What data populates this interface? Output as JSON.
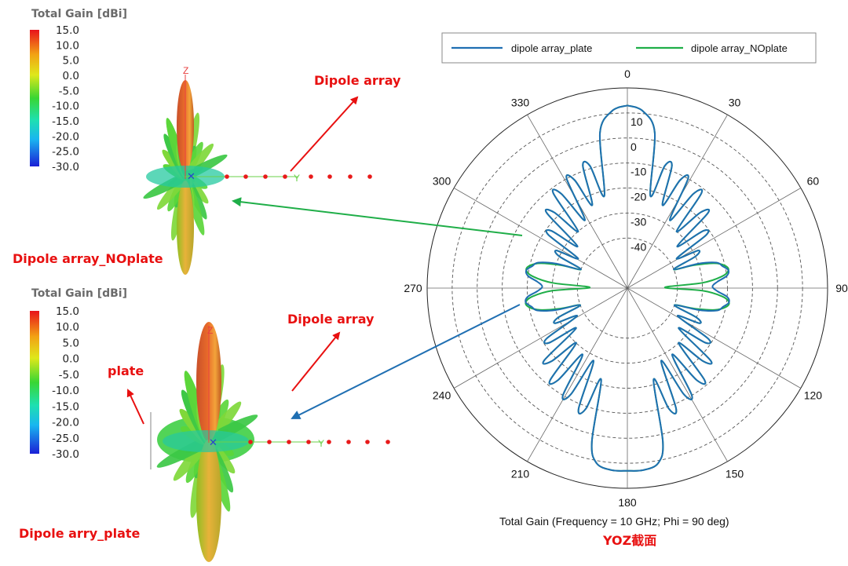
{
  "colorbar": {
    "title": "Total Gain [dBi]",
    "ticks": [
      "15.0",
      "10.0",
      "5.0",
      "0.0",
      "-5.0",
      "-10.0",
      "-15.0",
      "-20.0",
      "-25.0",
      "-30.0"
    ]
  },
  "pattern_top": {
    "axis_z": "Z",
    "axis_y": "Y",
    "arrow_label": "Dipole array",
    "name_label": "Dipole array_NOplate"
  },
  "pattern_bottom": {
    "axis_z": "Z",
    "axis_y": "Y",
    "arrow_label": "Dipole array",
    "plate_label": "plate",
    "name_label": "Dipole arry_plate"
  },
  "colors": {
    "plate": "#1f6fb2",
    "noplate": "#1fae48",
    "label_red": "#e81010",
    "arrow_green": "#1fae48",
    "arrow_blue": "#1f6fb2"
  },
  "chart_data": {
    "type": "polar-line",
    "caption": "Total Gain (Frequency = 10 GHz; Phi = 90 deg)",
    "subcaption": "YOZ截面",
    "radial_range": [
      -60,
      20
    ],
    "radial_ticks": [
      "10",
      "0",
      "-10",
      "-20",
      "-30",
      "-40"
    ],
    "radial_tick_values": [
      10,
      0,
      -10,
      -20,
      -30,
      -40
    ],
    "angle_ticks": [
      "0",
      "30",
      "60",
      "90",
      "120",
      "150",
      "180",
      "210",
      "240",
      "270",
      "300",
      "330"
    ],
    "grid": true,
    "legend_position": "top",
    "series": [
      {
        "name": "dipole array_plate",
        "color": "#1f6fb2",
        "theta_deg": [
          0,
          5,
          10,
          14,
          17,
          20,
          23,
          26,
          29,
          32,
          35,
          38,
          41,
          44,
          47,
          50,
          53,
          56,
          59,
          62,
          65,
          68,
          71,
          74,
          77,
          80,
          83,
          86,
          89,
          92,
          95,
          98,
          101,
          104,
          107,
          110,
          113,
          116,
          119,
          122,
          125,
          128,
          131,
          134,
          137,
          140,
          143,
          146,
          149,
          152,
          155,
          158,
          161,
          164,
          167,
          170,
          175,
          180
        ],
        "gain_dbi": [
          13,
          11,
          3,
          -22,
          -9,
          -8,
          -24,
          -12,
          -10,
          -28,
          -14,
          -12,
          -30,
          -18,
          -16,
          -34,
          -22,
          -22,
          -37,
          -28,
          -30,
          -40,
          -30,
          -23,
          -21,
          -19,
          -20,
          -24,
          -26,
          -24,
          -20,
          -19,
          -21,
          -23,
          -30,
          -40,
          -30,
          -28,
          -37,
          -22,
          -22,
          -34,
          -16,
          -18,
          -30,
          -12,
          -14,
          -28,
          -10,
          -12,
          -28,
          -8,
          -9,
          -22,
          3,
          11,
          13,
          13
        ]
      },
      {
        "name": "dipole array_NOplate",
        "color": "#1fae48",
        "theta_deg": [
          0,
          5,
          10,
          14,
          17,
          20,
          23,
          26,
          29,
          32,
          35,
          38,
          41,
          44,
          47,
          50,
          53,
          56,
          59,
          62,
          65,
          68,
          71,
          74,
          77,
          80,
          83,
          86,
          89,
          92,
          95,
          98,
          101,
          104,
          107,
          110,
          113,
          116,
          119,
          122,
          125,
          128,
          131,
          134,
          137,
          140,
          143,
          146,
          149,
          152,
          155,
          158,
          161,
          164,
          167,
          170,
          175,
          180
        ],
        "gain_dbi": [
          13,
          11,
          3,
          -22,
          -9,
          -8,
          -24,
          -12,
          -10,
          -28,
          -14,
          -12,
          -30,
          -18,
          -16,
          -34,
          -22,
          -22,
          -37,
          -28,
          -30,
          -40,
          -32,
          -24,
          -20,
          -19,
          -22,
          -30,
          -45,
          -30,
          -22,
          -19,
          -20,
          -24,
          -32,
          -40,
          -30,
          -28,
          -37,
          -22,
          -22,
          -34,
          -16,
          -18,
          -30,
          -12,
          -14,
          -28,
          -10,
          -12,
          -28,
          -8,
          -9,
          -22,
          3,
          11,
          13,
          13
        ]
      }
    ]
  }
}
